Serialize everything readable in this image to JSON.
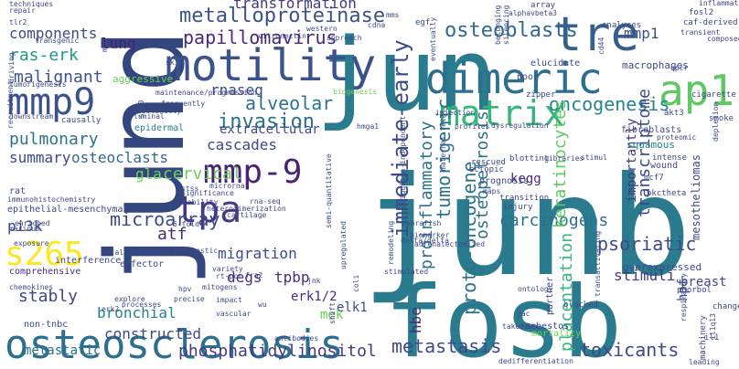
{
  "words": [
    {
      "text": "junb",
      "color": "#2a7b8e"
    },
    {
      "text": "jund",
      "color": "#33467e"
    },
    {
      "text": "jun",
      "color": "#2a7b8e"
    },
    {
      "text": "fosb",
      "color": "#2a7b8e"
    },
    {
      "text": "osteosclerosis",
      "color": "#2d6f8e"
    },
    {
      "text": "motility",
      "color": "#3b528b"
    },
    {
      "text": "dimeric",
      "color": "#2d6f8e"
    },
    {
      "text": "tre",
      "color": "#35608d"
    },
    {
      "text": "ap1",
      "color": "#5ec962"
    },
    {
      "text": "mmp9",
      "color": "#3b528b"
    },
    {
      "text": "s265",
      "color": "#fde725"
    },
    {
      "text": "tpa",
      "color": "#443983"
    },
    {
      "text": "mmp-9",
      "color": "#482475"
    },
    {
      "text": "matrix",
      "color": "#35b779"
    },
    {
      "text": "immediate-early",
      "color": "#3e4989"
    },
    {
      "text": "osteoblasts",
      "color": "#31688e"
    },
    {
      "text": "metalloproteinase",
      "color": "#3b528b"
    },
    {
      "text": "transformation",
      "color": "#443983"
    },
    {
      "text": "papillomavirus",
      "color": "#482878"
    },
    {
      "text": "invasion",
      "color": "#2c728e"
    },
    {
      "text": "alveolar",
      "color": "#2c728e"
    },
    {
      "text": "oncogenesis",
      "color": "#26828e"
    },
    {
      "text": "mmp1",
      "color": "#3b528b"
    },
    {
      "text": "components",
      "color": "#3e4989"
    },
    {
      "text": "ras-erk",
      "color": "#1f9a8a"
    },
    {
      "text": "malignant",
      "color": "#3b528b"
    },
    {
      "text": "lung",
      "color": "#481f70"
    },
    {
      "text": "pulmonary",
      "color": "#2c728e"
    },
    {
      "text": "summary",
      "color": "#3e4989"
    },
    {
      "text": "osteoclasts",
      "color": "#31688e"
    },
    {
      "text": "gla",
      "color": "#6ece58"
    },
    {
      "text": "cervical",
      "color": "#6ece58"
    },
    {
      "text": "epithelial-mesenchymal",
      "color": "#3e4989"
    },
    {
      "text": "pi3k",
      "color": "#3e4989"
    },
    {
      "text": "microarray",
      "color": "#3e4989"
    },
    {
      "text": "atf",
      "color": "#472d7b"
    },
    {
      "text": "stably",
      "color": "#3e4989"
    },
    {
      "text": "bronchial",
      "color": "#26828e"
    },
    {
      "text": "migration",
      "color": "#3e4989"
    },
    {
      "text": "degs",
      "color": "#472d7b"
    },
    {
      "text": "tpbp",
      "color": "#472d7b"
    },
    {
      "text": "cascades",
      "color": "#3e4989"
    },
    {
      "text": "extracellular",
      "color": "#3e4989"
    },
    {
      "text": "rnaseq",
      "color": "#3e4989"
    },
    {
      "text": "tumorigenic",
      "color": "#2c728e"
    },
    {
      "text": "proinflammatory",
      "color": "#2c728e"
    },
    {
      "text": "hbe",
      "color": "#472d7b"
    },
    {
      "text": "proto-oncogene",
      "color": "#2c728e"
    },
    {
      "text": "osteopetrosis",
      "color": "#2c728e"
    },
    {
      "text": "kegg",
      "color": "#472d7b"
    },
    {
      "text": "carcinogens",
      "color": "#2c728e"
    },
    {
      "text": "keratinocytes",
      "color": "#5ec962"
    },
    {
      "text": "transcriptome",
      "color": "#3e4989"
    },
    {
      "text": "psoriatic",
      "color": "#3e4989"
    },
    {
      "text": "placentation",
      "color": "#35b779"
    },
    {
      "text": "stimuli",
      "color": "#443983"
    },
    {
      "text": "toxicants",
      "color": "#3e4989"
    },
    {
      "text": "metastasis",
      "color": "#3e4989"
    },
    {
      "text": "phosphatidylinositol",
      "color": "#443983"
    },
    {
      "text": "constructed",
      "color": "#3e4989"
    },
    {
      "text": "metastatic",
      "color": "#2c728e"
    },
    {
      "text": "comprehensive",
      "color": "#472d7b"
    },
    {
      "text": "erk1/2",
      "color": "#472d7b"
    },
    {
      "text": "elk1",
      "color": "#3e4989"
    },
    {
      "text": "mek",
      "color": "#6ece58"
    },
    {
      "text": "breast",
      "color": "#3e4989"
    },
    {
      "text": "hpf",
      "color": "#3e4989"
    },
    {
      "text": "overexpressed",
      "color": "#3e4989"
    },
    {
      "text": "importantly",
      "color": "#443983"
    },
    {
      "text": "mesotheliomas",
      "color": "#3e4989"
    },
    {
      "text": "macrophages",
      "color": "#3e4989"
    },
    {
      "text": "fibroblasts",
      "color": "#3e4989"
    },
    {
      "text": "squamous",
      "color": "#26828e"
    },
    {
      "text": "aggressive",
      "color": "#6ece58"
    },
    {
      "text": "epidermal",
      "color": "#26828e"
    },
    {
      "text": "maintenance/progression",
      "color": "#3e4989"
    },
    {
      "text": "vitronectin",
      "color": "#3e4989"
    },
    {
      "text": "western",
      "color": "#3e4989"
    },
    {
      "text": "approach",
      "color": "#3e4989"
    },
    {
      "text": "biogenesis",
      "color": "#6ece58"
    },
    {
      "text": "injection",
      "color": "#3e4989"
    },
    {
      "text": "blotting",
      "color": "#3e4989"
    },
    {
      "text": "libraries",
      "color": "#3e4989"
    },
    {
      "text": "stimul",
      "color": "#3e4989"
    },
    {
      "text": "profiles",
      "color": "#3e4989"
    },
    {
      "text": "dysregulation",
      "color": "#3e4989"
    },
    {
      "text": "rescued",
      "color": "#3e4989"
    },
    {
      "text": "ectopic",
      "color": "#3e4989"
    },
    {
      "text": "prognosis",
      "color": "#3e4989"
    },
    {
      "text": "maps",
      "color": "#3e4989"
    },
    {
      "text": "transition",
      "color": "#3e4989"
    },
    {
      "text": "injury",
      "color": "#3e4989"
    },
    {
      "text": "zebrafish",
      "color": "#3e4989"
    },
    {
      "text": "biomarker",
      "color": "#3e4989"
    },
    {
      "text": "delta/delta",
      "color": "#3e4989"
    },
    {
      "text": "remodeling",
      "color": "#3e4989"
    },
    {
      "text": "stimulated",
      "color": "#3e4989"
    },
    {
      "text": "adrenalectomized",
      "color": "#3e4989"
    },
    {
      "text": "maternal-fetal",
      "color": "#3e4989"
    },
    {
      "text": "ubiquitin-independent",
      "color": "#3e4989"
    },
    {
      "text": "hmga1",
      "color": "#3e4989"
    },
    {
      "text": "immunohistochemistry",
      "color": "#3e4989"
    },
    {
      "text": "rat",
      "color": "#3e4989"
    },
    {
      "text": "marinum",
      "color": "#3e4989"
    },
    {
      "text": "chemokines",
      "color": "#3e4989"
    },
    {
      "text": "interference",
      "color": "#3e4989"
    },
    {
      "text": "effector",
      "color": "#3e4989"
    },
    {
      "text": "betal-integrin",
      "color": "#3e4989"
    },
    {
      "text": "prognostic",
      "color": "#3e4989"
    },
    {
      "text": "5-fold",
      "color": "#3e4989"
    },
    {
      "text": "cartilage",
      "color": "#3e4989"
    },
    {
      "text": "rna-seq",
      "color": "#3e4989"
    },
    {
      "text": "heterodimerization",
      "color": "#3e4989"
    },
    {
      "text": "microrna",
      "color": "#3e4989"
    },
    {
      "text": "mobility",
      "color": "#3e4989"
    },
    {
      "text": "significance",
      "color": "#3e4989"
    },
    {
      "text": "stss",
      "color": "#3e4989"
    },
    {
      "text": "fra2",
      "color": "#3e4989"
    },
    {
      "text": "rt-pcr",
      "color": "#3e4989"
    },
    {
      "text": "mitogens",
      "color": "#3e4989"
    },
    {
      "text": "precise",
      "color": "#3e4989"
    },
    {
      "text": "processes",
      "color": "#3e4989"
    },
    {
      "text": "explore",
      "color": "#3e4989"
    },
    {
      "text": "vascular",
      "color": "#3e4989"
    },
    {
      "text": "erk2",
      "color": "#3e4989"
    },
    {
      "text": "non-tnbc",
      "color": "#3e4989"
    },
    {
      "text": "jnk",
      "color": "#3e4989"
    },
    {
      "text": "coli",
      "color": "#3e4989"
    },
    {
      "text": "semi-quantitative",
      "color": "#3e4989"
    },
    {
      "text": "shift",
      "color": "#3e4989"
    },
    {
      "text": "upregulated",
      "color": "#3e4989"
    },
    {
      "text": "asbestos",
      "color": "#3e4989"
    },
    {
      "text": "partner",
      "color": "#3e4989"
    },
    {
      "text": "mortality",
      "color": "#6ece58"
    },
    {
      "text": "changed",
      "color": "#3e4989"
    },
    {
      "text": "machinery",
      "color": "#3e4989"
    },
    {
      "text": "phorbol",
      "color": "#3e4989"
    },
    {
      "text": "respiratory",
      "color": "#3e4989"
    },
    {
      "text": "leading",
      "color": "#3e4989"
    },
    {
      "text": "qpcr",
      "color": "#3e4989"
    },
    {
      "text": "cigarette",
      "color": "#3e4989"
    },
    {
      "text": "smoke",
      "color": "#3e4989"
    },
    {
      "text": "depletion",
      "color": "#3e4989"
    },
    {
      "text": "pkctheta",
      "color": "#3e4989"
    },
    {
      "text": "mcf7",
      "color": "#3e4989"
    },
    {
      "text": "intense",
      "color": "#3e4989"
    },
    {
      "text": "wound",
      "color": "#3e4989"
    },
    {
      "text": "poor",
      "color": "#3e4989"
    },
    {
      "text": "zipper",
      "color": "#3e4989"
    },
    {
      "text": "elucidate",
      "color": "#3e4989"
    },
    {
      "text": "analyses",
      "color": "#3e4989"
    },
    {
      "text": "caf-derived",
      "color": "#3e4989"
    },
    {
      "text": "transient",
      "color": "#3e4989"
    },
    {
      "text": "composed",
      "color": "#3e4989"
    },
    {
      "text": "inflammatory",
      "color": "#3e4989"
    },
    {
      "text": "fosl2",
      "color": "#3e4989"
    },
    {
      "text": "egf",
      "color": "#3e4989"
    },
    {
      "text": "array",
      "color": "#3e4989"
    },
    {
      "text": "alphavbeta3",
      "color": "#3e4989"
    },
    {
      "text": "mms",
      "color": "#3e4989"
    },
    {
      "text": "cdna",
      "color": "#3e4989"
    },
    {
      "text": "belonging",
      "color": "#3e4989"
    },
    {
      "text": "silencing",
      "color": "#3e4989"
    },
    {
      "text": "techniques",
      "color": "#3e4989"
    },
    {
      "text": "repair",
      "color": "#3e4989"
    },
    {
      "text": "tlr2",
      "color": "#3e4989"
    },
    {
      "text": "transgenic",
      "color": "#3e4989"
    },
    {
      "text": "driving",
      "color": "#3e4989"
    },
    {
      "text": "tumorigenesis",
      "color": "#3e4989"
    },
    {
      "text": "downstream",
      "color": "#3e4989"
    },
    {
      "text": "causally",
      "color": "#3e4989"
    },
    {
      "text": "recruitment",
      "color": "#3e4989"
    },
    {
      "text": "mgp",
      "color": "#3e4989"
    },
    {
      "text": "skin",
      "color": "#3e4989"
    },
    {
      "text": "distinctly",
      "color": "#3e4989"
    },
    {
      "text": "luminal",
      "color": "#3e4989"
    },
    {
      "text": "frequently",
      "color": "#3e4989"
    },
    {
      "text": "sv40",
      "color": "#3e4989"
    },
    {
      "text": "eventually",
      "color": "#3e4989"
    },
    {
      "text": "enriched",
      "color": "#3e4989"
    },
    {
      "text": "exposure",
      "color": "#3e4989"
    },
    {
      "text": "hpv",
      "color": "#3e4989"
    },
    {
      "text": "impact",
      "color": "#3e4989"
    },
    {
      "text": "variety",
      "color": "#3e4989"
    },
    {
      "text": "wu",
      "color": "#3e4989"
    },
    {
      "text": "antibodies",
      "color": "#3e4989"
    },
    {
      "text": "ontology",
      "color": "#3e4989"
    },
    {
      "text": "blocked",
      "color": "#3e4989"
    },
    {
      "text": "yac",
      "color": "#3e4989"
    },
    {
      "text": "takedown",
      "color": "#3e4989"
    },
    {
      "text": "transactivating",
      "color": "#3e4989"
    },
    {
      "text": "proteomic",
      "color": "#3e4989"
    },
    {
      "text": "akt3",
      "color": "#3e4989"
    },
    {
      "text": "cd44",
      "color": "#3e4989"
    },
    {
      "text": "dedifferentiation",
      "color": "#3e4989"
    },
    {
      "text": "il1",
      "color": "#3e4989"
    },
    {
      "text": "il1q13",
      "color": "#3e4989"
    }
  ]
}
